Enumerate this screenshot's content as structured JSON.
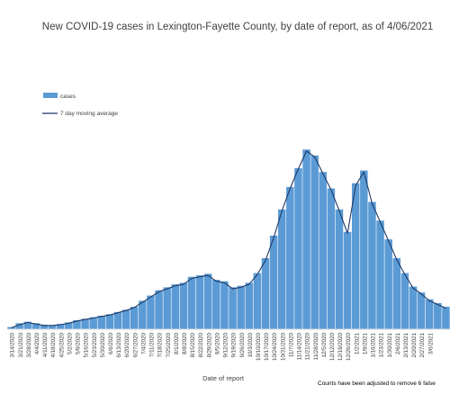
{
  "chart_data": {
    "type": "bar",
    "title": "New COVID-19 cases in Lexington-Fayette County, by date of report, as of 4/06/2021",
    "xlabel": "Date of report",
    "ylabel": "",
    "note": "Counts have been adjusted to remove 6 false",
    "ylim": [
      0,
      370
    ],
    "grid": false,
    "legend_position": "top-left",
    "colors": {
      "bars": "#5b9bd5",
      "line": "#1f3864"
    },
    "x_start_date": "2020-03-14",
    "x_tick_labels": [
      "3/14/2020",
      "3/21/2020",
      "3/28/2020",
      "4/4/2020",
      "4/11/2020",
      "4/18/2020",
      "4/25/2020",
      "5/2/2020",
      "5/9/2020",
      "5/16/2020",
      "5/23/2020",
      "5/30/2020",
      "6/6/2020",
      "6/13/2020",
      "6/20/2020",
      "6/27/2020",
      "7/4/2020",
      "7/11/2020",
      "7/18/2020",
      "7/25/2020",
      "8/1/2020",
      "8/8/2020",
      "8/15/2020",
      "8/22/2020",
      "8/29/2020",
      "9/5/2020",
      "9/12/2020",
      "9/19/2020",
      "9/26/2020",
      "10/3/2020",
      "10/10/2020",
      "10/17/2020",
      "10/24/2020",
      "10/31/2020",
      "11/7/2020",
      "11/14/2020",
      "11/21/2020",
      "11/28/2020",
      "12/5/2020",
      "12/12/2020",
      "12/19/2020",
      "12/26/2020",
      "1/2/2021",
      "1/9/2021",
      "1/16/2021",
      "1/23/2021",
      "1/30/2021",
      "2/6/2021",
      "2/13/2021",
      "2/20/2021",
      "2/27/2021",
      "3/6/2021"
    ],
    "series": [
      {
        "name": "cases",
        "type": "bar",
        "weekly_values": [
          3,
          8,
          10,
          8,
          6,
          5,
          7,
          9,
          12,
          14,
          16,
          18,
          20,
          23,
          26,
          30,
          38,
          45,
          52,
          56,
          60,
          62,
          70,
          72,
          74,
          66,
          64,
          56,
          58,
          62,
          75,
          95,
          125,
          160,
          190,
          215,
          240,
          232,
          210,
          188,
          160,
          130,
          195,
          212,
          170,
          145,
          120,
          95,
          75,
          57,
          49,
          40,
          35,
          30
        ]
      },
      {
        "name": "7 day moving average",
        "type": "line",
        "weekly_values": [
          2,
          6,
          9,
          7,
          5,
          5,
          6,
          8,
          11,
          13,
          15,
          17,
          19,
          22,
          25,
          29,
          36,
          43,
          50,
          54,
          58,
          60,
          68,
          70,
          72,
          64,
          62,
          54,
          56,
          60,
          73,
          92,
          122,
          158,
          188,
          214,
          238,
          230,
          208,
          186,
          158,
          128,
          192,
          210,
          168,
          143,
          118,
          93,
          73,
          55,
          47,
          38,
          33,
          28
        ]
      }
    ]
  }
}
